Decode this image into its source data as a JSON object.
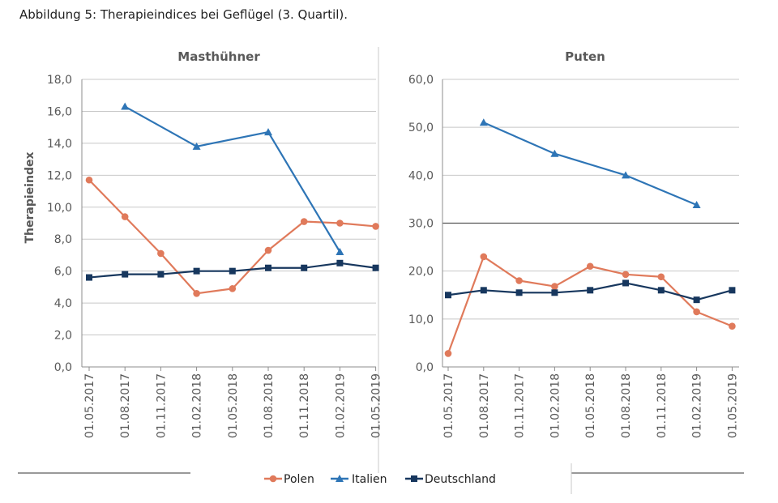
{
  "caption": "Abbildung 5: Therapieindices bei Geflügel (3. Quartil).",
  "colors": {
    "polen": "#E07A5B",
    "italien": "#2E75B6",
    "deutschland": "#17375E",
    "grid": "#C8C8C8",
    "axis": "#8C8C8C"
  },
  "chart_data": [
    {
      "type": "line",
      "title": "Masthühner",
      "ylabel": "Therapieindex",
      "xlabel": "",
      "ylim": [
        0,
        18
      ],
      "yticks": [
        "0,0",
        "2,0",
        "4,0",
        "6,0",
        "8,0",
        "10,0",
        "12,0",
        "14,0",
        "16,0",
        "18,0"
      ],
      "categories": [
        "01.05.2017",
        "01.08.2017",
        "01.11.2017",
        "01.02.2018",
        "01.05.2018",
        "01.08.2018",
        "01.11.2018",
        "01.02.2019",
        "01.05.2019"
      ],
      "grid": true,
      "series": [
        {
          "name": "Polen",
          "values": [
            11.7,
            9.4,
            7.1,
            4.6,
            4.9,
            7.3,
            9.1,
            9.0,
            8.8
          ]
        },
        {
          "name": "Italien",
          "values": [
            null,
            16.3,
            null,
            13.8,
            null,
            14.7,
            null,
            7.2,
            null
          ]
        },
        {
          "name": "Deutschland",
          "values": [
            5.6,
            5.8,
            5.8,
            6.0,
            6.0,
            6.2,
            6.2,
            6.5,
            6.2
          ]
        }
      ]
    },
    {
      "type": "line",
      "title": "Puten",
      "ylabel": "",
      "xlabel": "",
      "ylim": [
        0,
        60
      ],
      "yticks": [
        "0,0",
        "10,0",
        "20,0",
        "30,0",
        "40,0",
        "50,0",
        "60,0"
      ],
      "categories": [
        "01.05.2017",
        "01.08.2017",
        "01.11.2017",
        "01.02.2018",
        "01.05.2018",
        "01.08.2018",
        "01.11.2018",
        "01.02.2019",
        "01.05.2019"
      ],
      "grid": true,
      "series": [
        {
          "name": "Polen",
          "values": [
            2.8,
            23.0,
            18.0,
            16.8,
            21.0,
            19.3,
            18.8,
            11.5,
            8.5
          ]
        },
        {
          "name": "Italien",
          "values": [
            null,
            51.0,
            null,
            44.5,
            null,
            40.0,
            null,
            33.8,
            null
          ]
        },
        {
          "name": "Deutschland",
          "values": [
            15.0,
            16.0,
            15.5,
            15.5,
            16.0,
            17.5,
            16.0,
            14.0,
            16.0
          ]
        }
      ]
    }
  ],
  "legend": {
    "position": "bottom",
    "items": [
      "Polen",
      "Italien",
      "Deutschland"
    ]
  }
}
